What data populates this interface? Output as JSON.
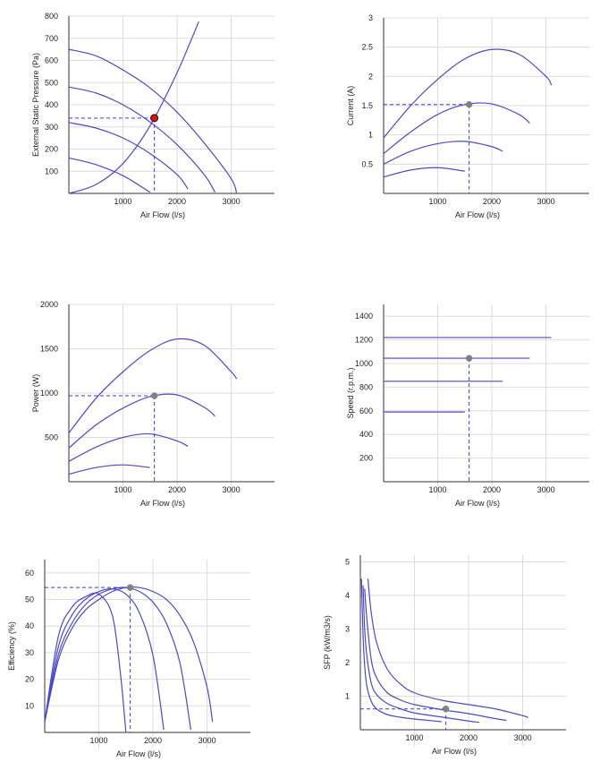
{
  "chart_data": [
    {
      "id": "pressure",
      "type": "line",
      "xlabel": "Air Flow (l/s)",
      "ylabel": "External Static Pressure (Pa)",
      "xlim": [
        0,
        3800
      ],
      "ylim": [
        0,
        800
      ],
      "xticks": [
        1000,
        2000,
        3000
      ],
      "yticks": [
        100,
        200,
        300,
        400,
        500,
        600,
        700,
        800
      ],
      "grid": true,
      "series": [
        {
          "x": [
            0,
            500,
            1000,
            1500,
            2000,
            2500,
            3000,
            3100
          ],
          "values": [
            650,
            621,
            557,
            476,
            366,
            228,
            66,
            0
          ]
        },
        {
          "x": [
            0,
            500,
            1000,
            1500,
            2000,
            2500,
            2700
          ],
          "values": [
            480,
            453,
            400,
            322,
            220,
            85,
            5
          ]
        },
        {
          "x": [
            0,
            500,
            1000,
            1500,
            2000,
            2200
          ],
          "values": [
            320,
            295,
            250,
            180,
            85,
            20
          ]
        },
        {
          "x": [
            0,
            500,
            1000,
            1500
          ],
          "values": [
            160,
            130,
            80,
            5
          ]
        },
        {
          "system_curve": true,
          "x": [
            0,
            500,
            1000,
            1500,
            2000,
            2400
          ],
          "values": [
            0,
            40,
            135,
            305,
            545,
            775
          ]
        }
      ],
      "operating_point": {
        "x": 1580,
        "y": 340,
        "color": "#e01010"
      }
    },
    {
      "id": "current",
      "type": "line",
      "xlabel": "Air Flow (l/s)",
      "ylabel": "Current (A)",
      "xlim": [
        0,
        3800
      ],
      "ylim": [
        0,
        3
      ],
      "xticks": [
        1000,
        2000,
        3000
      ],
      "yticks": [
        0.5,
        1,
        1.5,
        2,
        2.5,
        3
      ],
      "ytick_labels": [
        "0.5",
        "1",
        "1.5",
        "2",
        "2.5",
        "3"
      ],
      "grid": true,
      "series": [
        {
          "x": [
            0,
            500,
            1000,
            1500,
            2000,
            2500,
            3000,
            3100
          ],
          "values": [
            0.95,
            1.5,
            1.95,
            2.3,
            2.46,
            2.38,
            2.0,
            1.85
          ]
        },
        {
          "x": [
            0,
            500,
            1000,
            1500,
            2000,
            2500,
            2700
          ],
          "values": [
            0.68,
            1.05,
            1.35,
            1.52,
            1.53,
            1.35,
            1.2
          ]
        },
        {
          "x": [
            0,
            500,
            1000,
            1500,
            2000,
            2200
          ],
          "values": [
            0.5,
            0.72,
            0.85,
            0.89,
            0.8,
            0.72
          ]
        },
        {
          "x": [
            0,
            500,
            1000,
            1500
          ],
          "values": [
            0.28,
            0.4,
            0.44,
            0.38
          ]
        }
      ],
      "operating_point": {
        "x": 1580,
        "y": 1.52,
        "color": "#808080"
      }
    },
    {
      "id": "power",
      "type": "line",
      "xlabel": "Air Flow (l/s)",
      "ylabel": "Power (W)",
      "xlim": [
        0,
        3800
      ],
      "ylim": [
        0,
        2000
      ],
      "xticks": [
        1000,
        2000,
        3000
      ],
      "yticks": [
        500,
        1000,
        1500,
        2000
      ],
      "grid": true,
      "series": [
        {
          "x": [
            0,
            500,
            1000,
            1500,
            2000,
            2500,
            3000,
            3100
          ],
          "values": [
            550,
            940,
            1240,
            1480,
            1610,
            1540,
            1240,
            1160
          ]
        },
        {
          "x": [
            0,
            500,
            1000,
            1500,
            2000,
            2500,
            2700
          ],
          "values": [
            380,
            640,
            830,
            960,
            980,
            840,
            740
          ]
        },
        {
          "x": [
            0,
            500,
            1000,
            1500,
            2000,
            2200
          ],
          "values": [
            230,
            390,
            500,
            540,
            460,
            400
          ]
        },
        {
          "x": [
            0,
            500,
            1000,
            1500
          ],
          "values": [
            85,
            160,
            190,
            160
          ]
        }
      ],
      "operating_point": {
        "x": 1580,
        "y": 970,
        "color": "#808080"
      }
    },
    {
      "id": "speed",
      "type": "line",
      "xlabel": "Air Flow (l/s)",
      "ylabel": "Speed (r.p.m.)",
      "xlim": [
        0,
        3800
      ],
      "ylim": [
        0,
        1500
      ],
      "xticks": [
        1000,
        2000,
        3000
      ],
      "yticks": [
        200,
        400,
        600,
        800,
        1000,
        1200,
        1400
      ],
      "grid": true,
      "series": [
        {
          "x": [
            0,
            3100
          ],
          "values": [
            1220,
            1220
          ]
        },
        {
          "x": [
            0,
            2700
          ],
          "values": [
            1045,
            1045
          ]
        },
        {
          "x": [
            0,
            2200
          ],
          "values": [
            850,
            850
          ]
        },
        {
          "x": [
            0,
            1500
          ],
          "values": [
            590,
            590
          ]
        }
      ],
      "operating_point": {
        "x": 1580,
        "y": 1045,
        "color": "#808080"
      }
    },
    {
      "id": "efficiency",
      "type": "line",
      "xlabel": "Air Flow (l/s)",
      "ylabel": "Efficiency (%)",
      "xlim": [
        0,
        3800
      ],
      "ylim": [
        0,
        65
      ],
      "xticks": [
        1000,
        2000,
        3000
      ],
      "yticks": [
        10,
        20,
        30,
        40,
        50,
        60
      ],
      "grid": true,
      "series": [
        {
          "x": [
            0,
            250,
            500,
            750,
            1000,
            1250,
            1500,
            1750,
            2000,
            2250,
            2500,
            2750,
            3000,
            3100
          ],
          "values": [
            4,
            27,
            39,
            46,
            50,
            53,
            54.5,
            54.5,
            53,
            50,
            44,
            34,
            17,
            4
          ]
        },
        {
          "x": [
            0,
            250,
            500,
            750,
            1000,
            1250,
            1500,
            1750,
            2000,
            2250,
            2500,
            2700
          ],
          "values": [
            4,
            29,
            41,
            48,
            52,
            54,
            54.5,
            53,
            49,
            41,
            26,
            1
          ]
        },
        {
          "x": [
            0,
            250,
            500,
            750,
            1000,
            1250,
            1500,
            1750,
            2000,
            2200
          ],
          "values": [
            4,
            32,
            44,
            50,
            53,
            54,
            52,
            45,
            29,
            1
          ]
        },
        {
          "x": [
            0,
            250,
            500,
            750,
            1000,
            1250,
            1400,
            1500
          ],
          "values": [
            4,
            36,
            47,
            51,
            52,
            44,
            22,
            0
          ]
        }
      ],
      "operating_point": {
        "x": 1580,
        "y": 54.5,
        "color": "#808080"
      }
    },
    {
      "id": "sfp",
      "type": "line",
      "xlabel": "Air Flow (l/s)",
      "ylabel": "SFP (kW/m3/s)",
      "xlim": [
        0,
        3800
      ],
      "ylim": [
        0,
        5.2
      ],
      "xticks": [
        1000,
        2000,
        3000
      ],
      "yticks": [
        1,
        2,
        3,
        4,
        5
      ],
      "grid": true,
      "series": [
        {
          "x": [
            140,
            200,
            300,
            500,
            750,
            1000,
            1500,
            2000,
            2500,
            3000,
            3100
          ],
          "values": [
            4.5,
            3.5,
            2.6,
            1.8,
            1.35,
            1.1,
            0.88,
            0.75,
            0.62,
            0.42,
            0.36
          ]
        },
        {
          "x": [
            80,
            120,
            200,
            300,
            500,
            750,
            1000,
            1500,
            2000,
            2500,
            2700
          ],
          "values": [
            4.2,
            3.3,
            2.1,
            1.55,
            1.1,
            0.88,
            0.75,
            0.6,
            0.48,
            0.33,
            0.28
          ]
        },
        {
          "x": [
            50,
            80,
            120,
            200,
            300,
            500,
            750,
            1000,
            1500,
            2000,
            2200
          ],
          "values": [
            4.3,
            3.0,
            2.2,
            1.4,
            1.05,
            0.78,
            0.62,
            0.5,
            0.38,
            0.26,
            0.22
          ]
        },
        {
          "x": [
            20,
            50,
            80,
            120,
            200,
            300,
            500,
            750,
            1000,
            1250,
            1500
          ],
          "values": [
            4.5,
            2.8,
            1.9,
            1.3,
            0.85,
            0.62,
            0.45,
            0.37,
            0.32,
            0.28,
            0.24
          ]
        }
      ],
      "operating_point": {
        "x": 1580,
        "y": 0.62,
        "color": "#808080"
      }
    }
  ]
}
